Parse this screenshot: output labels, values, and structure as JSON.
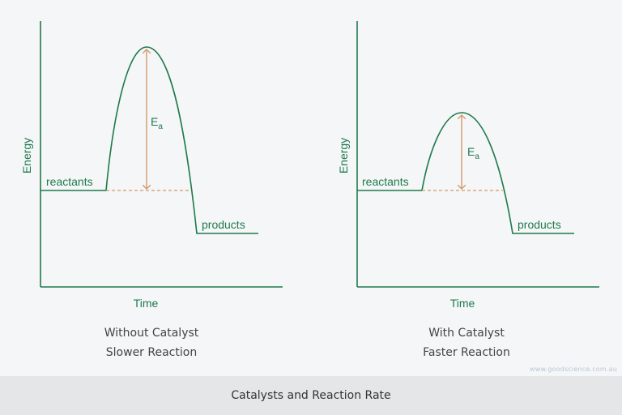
{
  "colors": {
    "curve": "#1e7a4a",
    "label": "#1e7a4a",
    "arrow": "#d49a6a",
    "baseline": "#d49a6a",
    "axis": "#1e7a4a",
    "caption": "#444444"
  },
  "diagrams": [
    {
      "axis_y_label": "Energy",
      "axis_x_label": "Time",
      "reactants_label": "reactants",
      "products_label": "products",
      "activation_label": "E",
      "activation_subscript": "a",
      "caption_line1": "Without Catalyst",
      "caption_line2": "Slower Reaction"
    },
    {
      "axis_y_label": "Energy",
      "axis_x_label": "Time",
      "reactants_label": "reactants",
      "products_label": "products",
      "activation_label": "E",
      "activation_subscript": "a",
      "caption_line1": "With Catalyst",
      "caption_line2": "Faster Reaction"
    }
  ],
  "watermark": "www.goodscience.com.au",
  "footer_title": "Catalysts and Reaction Rate"
}
